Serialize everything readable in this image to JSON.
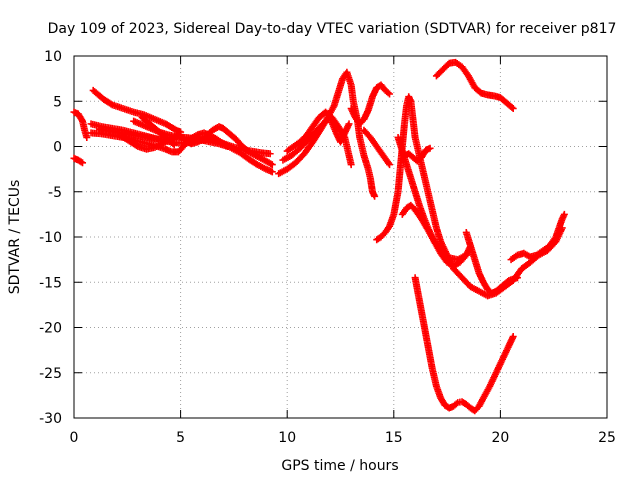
{
  "chart_data": {
    "type": "scatter",
    "title": "Day 109 of 2023, Sidereal Day-to-day VTEC variation (SDTVAR) for receiver p817",
    "xlabel": "GPS time / hours",
    "ylabel": "SDTVAR / TECUs",
    "xlim": [
      0,
      25
    ],
    "ylim": [
      -30,
      10
    ],
    "xticks": [
      0,
      5,
      10,
      15,
      20,
      25
    ],
    "yticks": [
      -30,
      -25,
      -20,
      -15,
      -10,
      -5,
      0,
      5,
      10
    ],
    "grid": true,
    "marker": "+",
    "color": "#ff0000",
    "series": [
      {
        "values": [
          [
            0.0,
            3.8
          ],
          [
            0.2,
            3.6
          ],
          [
            0.4,
            2.8
          ],
          [
            0.5,
            1.8
          ],
          [
            0.6,
            1.0
          ]
        ]
      },
      {
        "values": [
          [
            0.0,
            -1.3
          ],
          [
            0.2,
            -1.5
          ],
          [
            0.4,
            -1.8
          ]
        ]
      },
      {
        "values": [
          [
            0.9,
            6.2
          ],
          [
            1.1,
            5.8
          ],
          [
            1.4,
            5.2
          ],
          [
            1.8,
            4.6
          ],
          [
            2.3,
            4.2
          ],
          [
            2.8,
            3.8
          ],
          [
            3.3,
            3.5
          ],
          [
            3.8,
            3.0
          ],
          [
            4.3,
            2.5
          ],
          [
            4.8,
            1.8
          ],
          [
            5.0,
            1.6
          ]
        ]
      },
      {
        "values": [
          [
            0.8,
            2.5
          ],
          [
            1.3,
            2.2
          ],
          [
            1.8,
            2.0
          ],
          [
            2.3,
            1.8
          ],
          [
            2.8,
            1.5
          ],
          [
            3.3,
            1.2
          ],
          [
            3.8,
            0.9
          ],
          [
            4.3,
            0.6
          ],
          [
            4.8,
            0.4
          ],
          [
            5.3,
            0.4
          ],
          [
            5.8,
            0.6
          ],
          [
            6.3,
            0.8
          ],
          [
            6.8,
            0.5
          ],
          [
            7.3,
            0.1
          ],
          [
            7.8,
            -0.3
          ],
          [
            8.3,
            -0.5
          ],
          [
            8.8,
            -0.7
          ],
          [
            9.2,
            -0.8
          ]
        ]
      },
      {
        "values": [
          [
            0.8,
            1.5
          ],
          [
            1.3,
            1.4
          ],
          [
            1.8,
            1.2
          ],
          [
            2.3,
            1.0
          ],
          [
            2.8,
            0.7
          ],
          [
            3.3,
            0.4
          ],
          [
            3.8,
            0.1
          ],
          [
            4.3,
            -0.3
          ],
          [
            4.6,
            -0.6
          ],
          [
            4.9,
            -0.6
          ],
          [
            5.2,
            0.2
          ],
          [
            5.5,
            0.9
          ],
          [
            5.8,
            1.3
          ],
          [
            6.1,
            1.5
          ],
          [
            6.4,
            1.2
          ],
          [
            6.7,
            0.8
          ],
          [
            7.0,
            0.3
          ],
          [
            7.4,
            -0.2
          ],
          [
            7.8,
            -0.7
          ],
          [
            8.2,
            -1.4
          ],
          [
            8.6,
            -2.0
          ],
          [
            9.0,
            -2.5
          ],
          [
            9.3,
            -2.8
          ]
        ]
      },
      {
        "values": [
          [
            2.8,
            2.8
          ],
          [
            3.2,
            2.4
          ],
          [
            3.6,
            2.0
          ],
          [
            4.0,
            1.6
          ],
          [
            4.4,
            1.3
          ],
          [
            4.8,
            1.1
          ],
          [
            5.2,
            1.0
          ],
          [
            5.6,
            0.9
          ],
          [
            6.0,
            0.7
          ],
          [
            6.4,
            0.5
          ],
          [
            6.8,
            0.3
          ],
          [
            7.2,
            0.0
          ]
        ]
      },
      {
        "values": [
          [
            2.2,
            1.2
          ],
          [
            2.6,
            0.6
          ],
          [
            3.0,
            0.0
          ],
          [
            3.4,
            -0.3
          ],
          [
            3.8,
            -0.1
          ],
          [
            4.2,
            0.4
          ],
          [
            4.6,
            0.9
          ],
          [
            4.9,
            1.2
          ],
          [
            5.1,
            1.0
          ],
          [
            5.3,
            0.6
          ],
          [
            5.5,
            0.3
          ],
          [
            5.8,
            0.5
          ],
          [
            6.1,
            0.9
          ],
          [
            6.3,
            1.4
          ],
          [
            6.5,
            1.8
          ],
          [
            6.8,
            2.2
          ],
          [
            7.0,
            2.0
          ],
          [
            7.3,
            1.4
          ],
          [
            7.6,
            0.8
          ],
          [
            7.9,
            0.0
          ],
          [
            8.2,
            -0.6
          ],
          [
            8.6,
            -1.1
          ],
          [
            9.0,
            -1.6
          ],
          [
            9.3,
            -2.0
          ]
        ]
      },
      {
        "values": [
          [
            1.2,
            1.9
          ],
          [
            1.7,
            1.7
          ],
          [
            2.2,
            1.5
          ],
          [
            2.7,
            1.3
          ],
          [
            3.2,
            1.1
          ],
          [
            3.7,
            0.9
          ],
          [
            4.2,
            0.7
          ]
        ]
      },
      {
        "values": [
          [
            3.2,
            3.2
          ],
          [
            3.5,
            2.6
          ],
          [
            3.8,
            2.0
          ],
          [
            4.1,
            1.4
          ],
          [
            4.4,
            0.8
          ],
          [
            4.7,
            0.2
          ]
        ]
      },
      {
        "values": [
          [
            9.6,
            -3.0
          ],
          [
            10.0,
            -2.5
          ],
          [
            10.4,
            -1.8
          ],
          [
            10.8,
            -0.8
          ],
          [
            11.2,
            0.5
          ],
          [
            11.6,
            2.0
          ],
          [
            11.9,
            3.2
          ],
          [
            12.2,
            4.5
          ],
          [
            12.4,
            6.0
          ],
          [
            12.6,
            7.5
          ],
          [
            12.8,
            8.2
          ],
          [
            13.0,
            6.8
          ],
          [
            13.1,
            5.0
          ],
          [
            13.3,
            2.8
          ],
          [
            13.4,
            1.0
          ],
          [
            13.6,
            -1.0
          ],
          [
            13.8,
            -2.5
          ],
          [
            13.9,
            -3.5
          ],
          [
            14.0,
            -5.0
          ],
          [
            14.1,
            -5.5
          ]
        ]
      },
      {
        "values": [
          [
            9.8,
            -1.5
          ],
          [
            10.2,
            -1.0
          ],
          [
            10.6,
            -0.2
          ],
          [
            11.0,
            0.8
          ],
          [
            11.4,
            1.8
          ],
          [
            11.8,
            2.8
          ],
          [
            12.0,
            3.2
          ],
          [
            12.3,
            1.5
          ],
          [
            12.5,
            0.5
          ],
          [
            12.7,
            1.5
          ],
          [
            12.9,
            2.5
          ]
        ]
      },
      {
        "values": [
          [
            10.0,
            -0.5
          ],
          [
            10.3,
            0.0
          ],
          [
            10.6,
            0.5
          ],
          [
            10.9,
            1.2
          ],
          [
            11.2,
            2.2
          ],
          [
            11.5,
            3.2
          ],
          [
            11.8,
            3.8
          ],
          [
            12.1,
            3.2
          ],
          [
            12.4,
            2.2
          ],
          [
            12.7,
            1.0
          ],
          [
            12.9,
            -1.0
          ],
          [
            13.0,
            -2.0
          ]
        ]
      },
      {
        "values": [
          [
            13.0,
            4.2
          ],
          [
            13.2,
            3.2
          ],
          [
            13.4,
            2.5
          ],
          [
            13.6,
            3.0
          ],
          [
            13.8,
            4.0
          ],
          [
            14.0,
            5.5
          ],
          [
            14.2,
            6.5
          ],
          [
            14.4,
            6.8
          ],
          [
            14.6,
            6.2
          ],
          [
            14.8,
            5.8
          ]
        ]
      },
      {
        "values": [
          [
            13.6,
            1.8
          ],
          [
            13.9,
            1.0
          ],
          [
            14.2,
            0.0
          ],
          [
            14.5,
            -1.0
          ],
          [
            14.8,
            -2.0
          ]
        ]
      },
      {
        "values": [
          [
            14.2,
            -10.3
          ],
          [
            14.4,
            -10.0
          ],
          [
            14.6,
            -9.5
          ],
          [
            14.8,
            -8.8
          ],
          [
            15.0,
            -7.5
          ],
          [
            15.2,
            -5.0
          ],
          [
            15.3,
            -2.5
          ],
          [
            15.4,
            0.0
          ],
          [
            15.5,
            2.5
          ],
          [
            15.6,
            4.5
          ],
          [
            15.7,
            5.5
          ],
          [
            15.8,
            5.0
          ],
          [
            15.9,
            3.0
          ],
          [
            16.0,
            1.0
          ],
          [
            16.2,
            -1.0
          ],
          [
            16.4,
            -3.0
          ],
          [
            16.6,
            -5.0
          ],
          [
            16.8,
            -7.0
          ],
          [
            17.0,
            -9.0
          ],
          [
            17.2,
            -10.5
          ],
          [
            17.5,
            -12.0
          ],
          [
            17.8,
            -13.5
          ],
          [
            18.2,
            -14.5
          ],
          [
            18.6,
            -15.5
          ],
          [
            19.0,
            -16.0
          ],
          [
            19.4,
            -16.5
          ],
          [
            19.8,
            -16.2
          ],
          [
            20.2,
            -15.5
          ],
          [
            20.6,
            -14.8
          ],
          [
            21.0,
            -13.5
          ],
          [
            21.4,
            -12.8
          ],
          [
            21.8,
            -12.0
          ],
          [
            22.2,
            -11.5
          ],
          [
            22.6,
            -10.5
          ],
          [
            22.9,
            -9.0
          ]
        ]
      },
      {
        "values": [
          [
            15.2,
            1.0
          ],
          [
            15.4,
            -0.5
          ],
          [
            15.6,
            -2.0
          ],
          [
            15.8,
            -3.5
          ],
          [
            16.0,
            -5.0
          ],
          [
            16.2,
            -6.5
          ],
          [
            16.4,
            -7.8
          ],
          [
            16.6,
            -9.0
          ],
          [
            16.9,
            -10.5
          ],
          [
            17.2,
            -11.5
          ],
          [
            17.6,
            -12.3
          ],
          [
            18.0,
            -12.5
          ],
          [
            18.4,
            -12.0
          ],
          [
            18.6,
            -11.0
          ]
        ]
      },
      {
        "values": [
          [
            15.4,
            -7.5
          ],
          [
            15.6,
            -6.8
          ],
          [
            15.8,
            -6.5
          ],
          [
            16.0,
            -7.0
          ],
          [
            16.3,
            -8.0
          ],
          [
            16.6,
            -9.2
          ],
          [
            16.9,
            -10.5
          ],
          [
            17.2,
            -11.8
          ],
          [
            17.5,
            -12.8
          ],
          [
            17.8,
            -13.2
          ],
          [
            18.1,
            -12.8
          ],
          [
            18.4,
            -12.0
          ]
        ]
      },
      {
        "values": [
          [
            15.5,
            -1.0
          ],
          [
            15.7,
            -0.8
          ],
          [
            15.9,
            -1.2
          ],
          [
            16.1,
            -1.6
          ],
          [
            16.3,
            -1.2
          ],
          [
            16.5,
            -0.4
          ],
          [
            16.7,
            -0.2
          ]
        ]
      },
      {
        "values": [
          [
            16.0,
            -14.5
          ],
          [
            16.2,
            -17.0
          ],
          [
            16.4,
            -19.5
          ],
          [
            16.6,
            -22.0
          ],
          [
            16.8,
            -24.5
          ],
          [
            17.0,
            -26.5
          ],
          [
            17.2,
            -27.8
          ],
          [
            17.4,
            -28.6
          ],
          [
            17.6,
            -28.9
          ],
          [
            17.8,
            -28.7
          ],
          [
            18.0,
            -28.3
          ],
          [
            18.2,
            -28.2
          ],
          [
            18.4,
            -28.5
          ],
          [
            18.6,
            -28.9
          ],
          [
            18.8,
            -29.2
          ],
          [
            19.0,
            -28.7
          ],
          [
            19.2,
            -27.8
          ],
          [
            19.5,
            -26.5
          ],
          [
            19.8,
            -25.0
          ],
          [
            20.1,
            -23.5
          ],
          [
            20.4,
            -22.0
          ],
          [
            20.6,
            -21.0
          ]
        ]
      },
      {
        "values": [
          [
            18.4,
            -9.5
          ],
          [
            18.6,
            -11.0
          ],
          [
            18.8,
            -12.5
          ],
          [
            19.0,
            -14.0
          ],
          [
            19.2,
            -15.0
          ],
          [
            19.4,
            -15.8
          ],
          [
            19.6,
            -16.2
          ],
          [
            19.8,
            -16.0
          ],
          [
            20.1,
            -15.4
          ],
          [
            20.4,
            -14.8
          ],
          [
            20.8,
            -14.5
          ]
        ]
      },
      {
        "values": [
          [
            20.5,
            -12.5
          ],
          [
            20.8,
            -12.0
          ],
          [
            21.1,
            -11.8
          ],
          [
            21.4,
            -12.2
          ],
          [
            21.7,
            -12.0
          ],
          [
            22.0,
            -11.5
          ],
          [
            22.3,
            -11.0
          ],
          [
            22.6,
            -10.0
          ],
          [
            22.9,
            -8.0
          ],
          [
            23.0,
            -7.5
          ]
        ]
      },
      {
        "values": [
          [
            17.0,
            7.8
          ],
          [
            17.3,
            8.5
          ],
          [
            17.6,
            9.2
          ],
          [
            17.9,
            9.3
          ],
          [
            18.2,
            8.8
          ],
          [
            18.5,
            7.8
          ],
          [
            18.8,
            6.5
          ],
          [
            19.1,
            5.9
          ],
          [
            19.4,
            5.7
          ],
          [
            19.7,
            5.6
          ],
          [
            20.0,
            5.4
          ],
          [
            20.3,
            4.8
          ],
          [
            20.6,
            4.2
          ]
        ]
      }
    ]
  }
}
